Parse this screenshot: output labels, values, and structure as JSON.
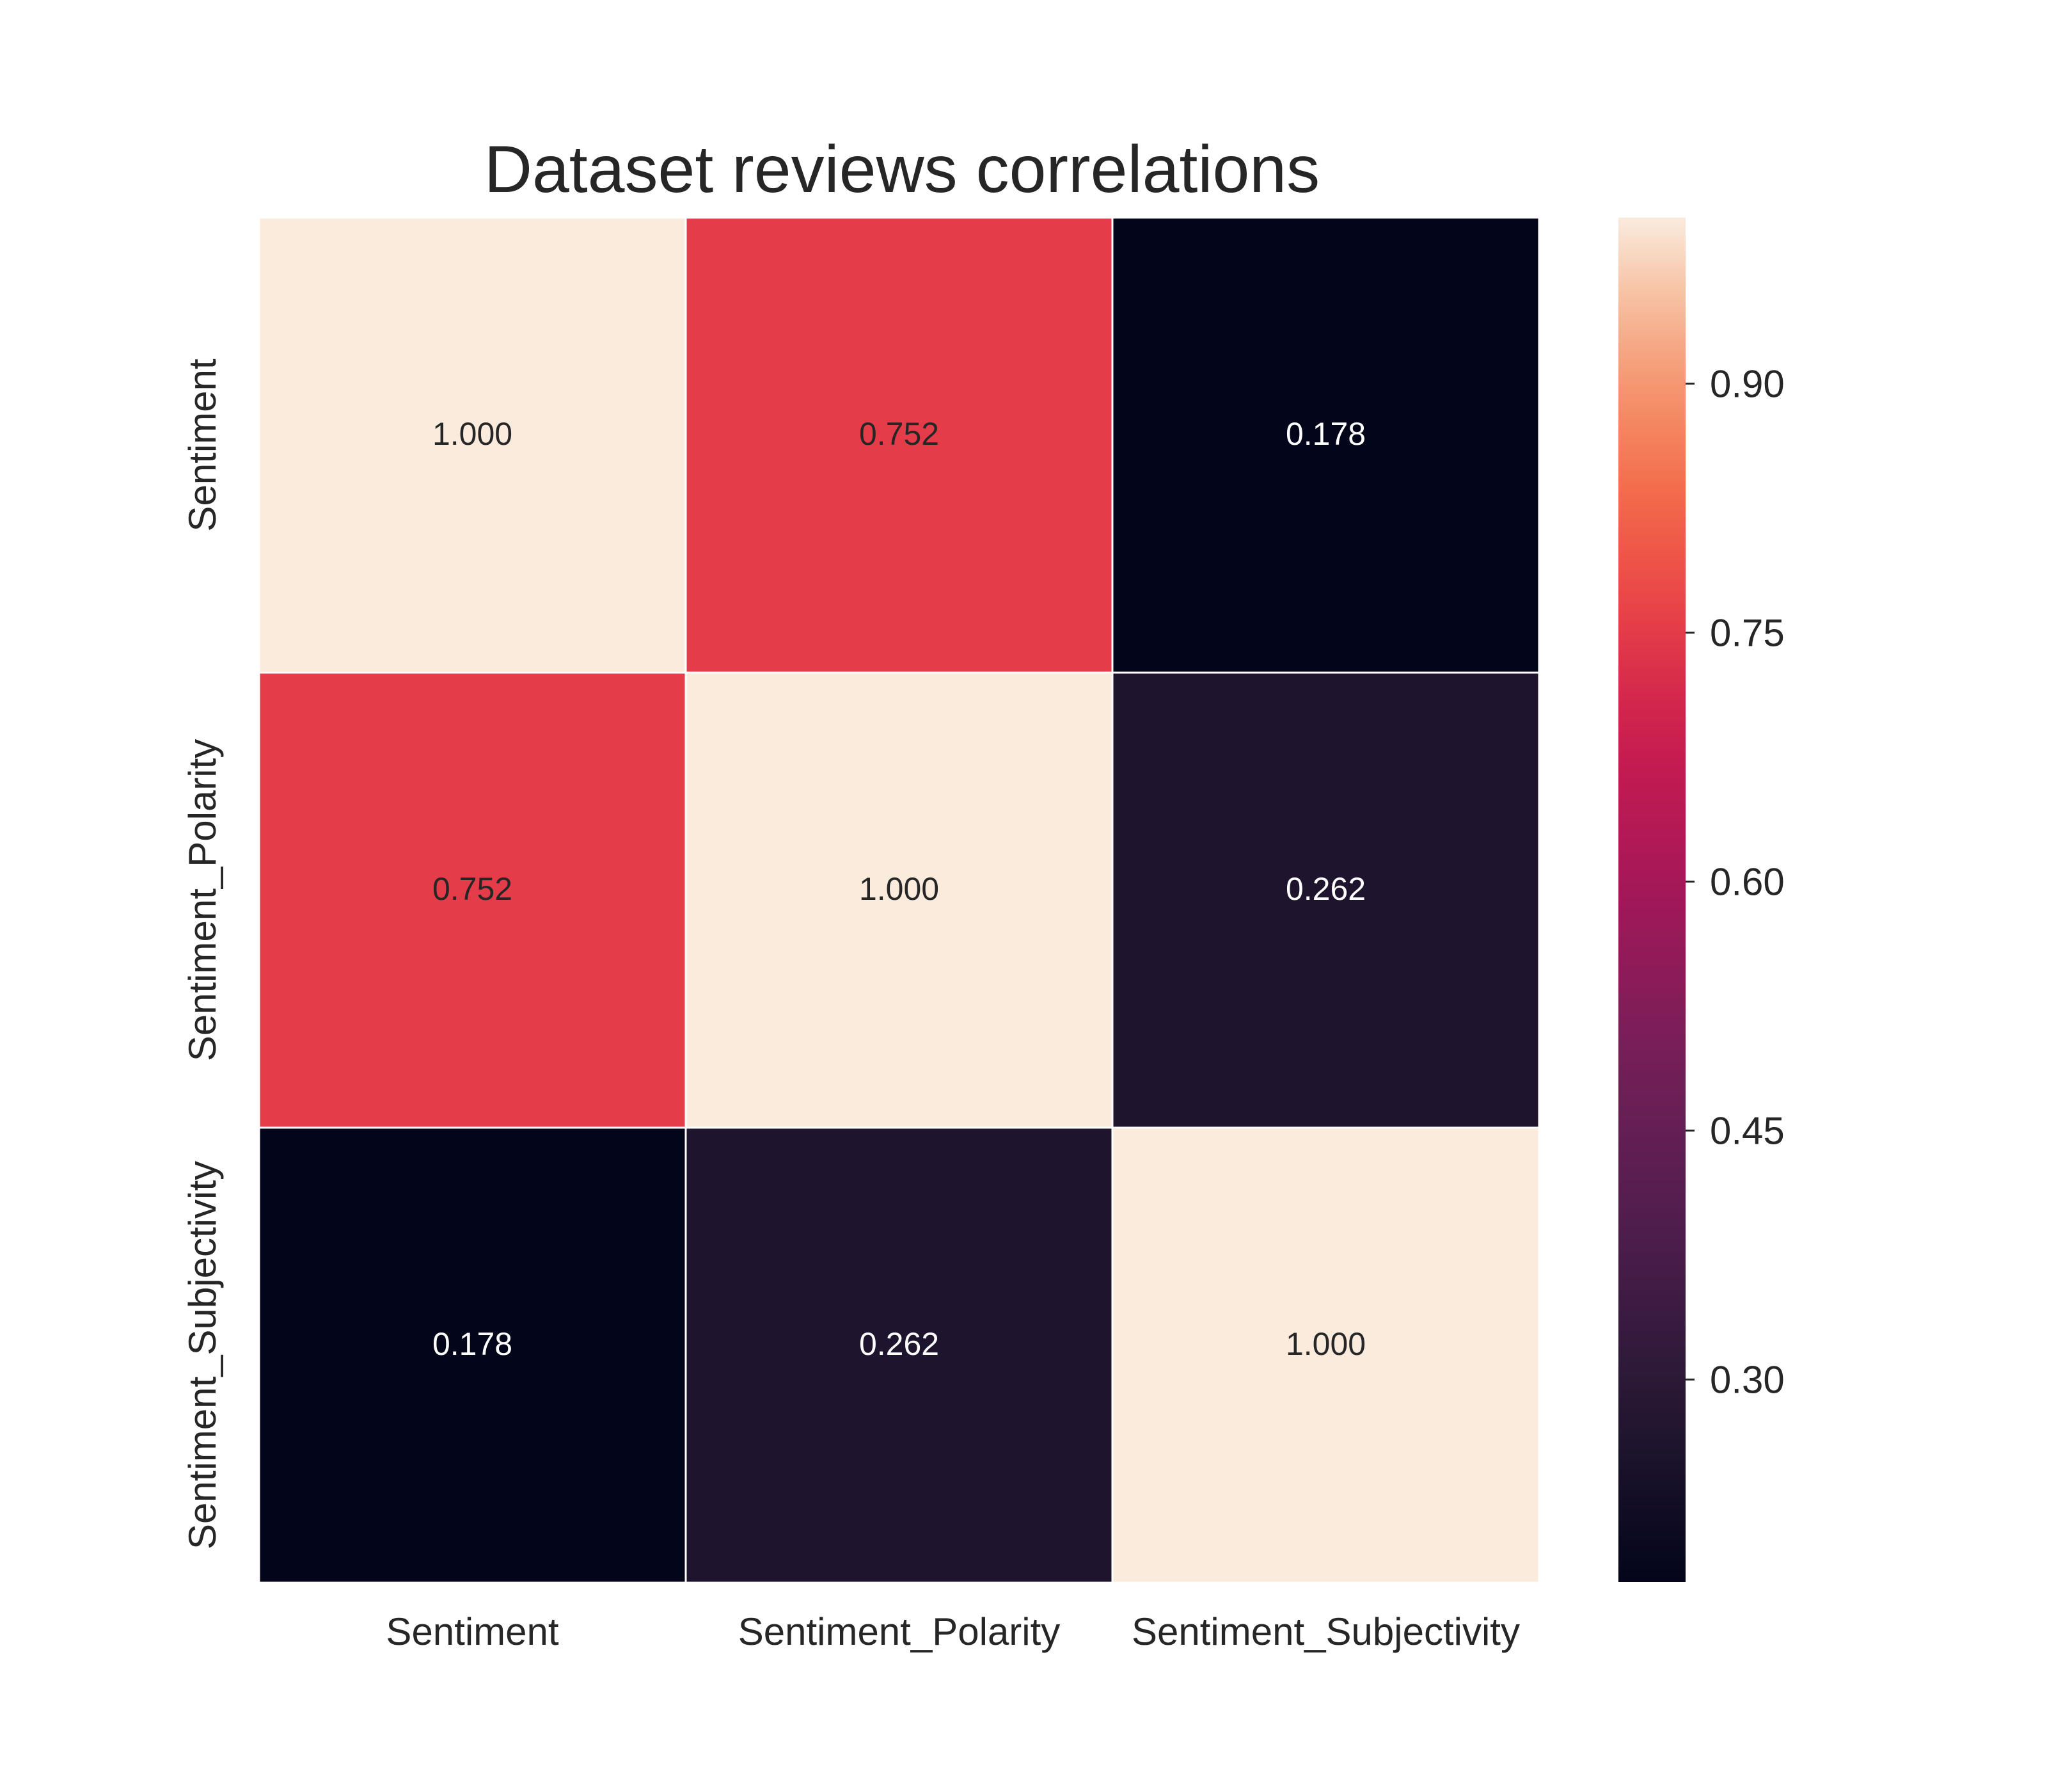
{
  "chart_data": {
    "type": "heatmap",
    "title": "Dataset reviews correlations",
    "x_categories": [
      "Sentiment",
      "Sentiment_Polarity",
      "Sentiment_Subjectivity"
    ],
    "y_categories": [
      "Sentiment",
      "Sentiment_Polarity",
      "Sentiment_Subjectivity"
    ],
    "values": [
      [
        1.0,
        0.752,
        0.178
      ],
      [
        0.752,
        1.0,
        0.262
      ],
      [
        0.178,
        0.262,
        1.0
      ]
    ],
    "cell_labels": [
      [
        "1.000",
        "0.752",
        "0.178"
      ],
      [
        "0.752",
        "1.000",
        "0.262"
      ],
      [
        "0.178",
        "0.262",
        "1.000"
      ]
    ],
    "colorbar": {
      "vmin": 0.178,
      "vmax": 1.0,
      "ticks": [
        0.3,
        0.45,
        0.6,
        0.75,
        0.9
      ],
      "tick_labels": [
        "0.30",
        "0.45",
        "0.60",
        "0.75",
        "0.90"
      ],
      "colormap": "rocket"
    },
    "grid": false
  }
}
